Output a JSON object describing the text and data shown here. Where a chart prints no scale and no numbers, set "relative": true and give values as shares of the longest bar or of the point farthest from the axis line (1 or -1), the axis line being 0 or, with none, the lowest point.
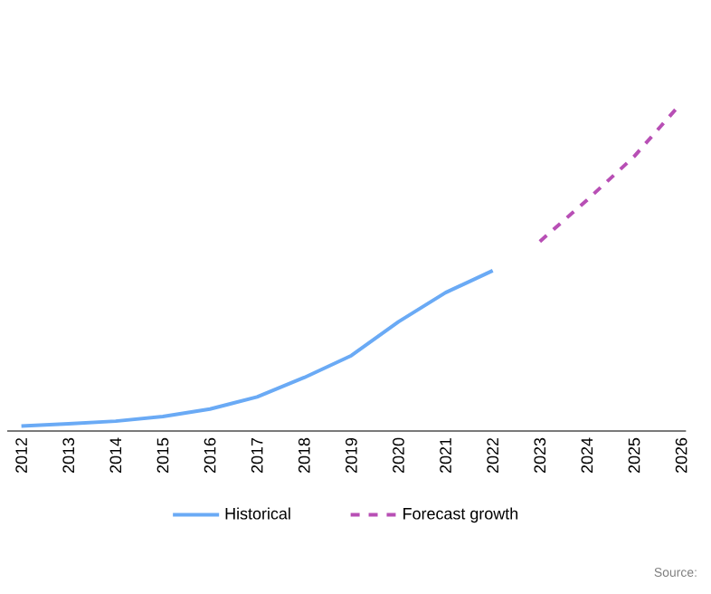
{
  "chart_data": {
    "type": "line",
    "relative": true,
    "categories": [
      "2012",
      "2013",
      "2014",
      "2015",
      "2016",
      "2017",
      "2018",
      "2019",
      "2020",
      "2021",
      "2022",
      "2023",
      "2024",
      "2025",
      "2026"
    ],
    "series": [
      {
        "name": "Historical",
        "color": "#6aaaf5",
        "line_style": "solid",
        "values": [
          0.015,
          0.022,
          0.03,
          0.044,
          0.067,
          0.104,
          0.163,
          0.23,
          0.333,
          0.422,
          0.489,
          null,
          null,
          null,
          null
        ]
      },
      {
        "name": "Forecast growth",
        "color": "#b84fb5",
        "line_style": "dashed",
        "values": [
          null,
          null,
          null,
          null,
          null,
          null,
          null,
          null,
          null,
          null,
          null,
          0.578,
          0.704,
          0.837,
          1
        ]
      }
    ],
    "legend": "bottom",
    "grid": false,
    "marker": "none",
    "annotations": [
      "Source:"
    ]
  }
}
